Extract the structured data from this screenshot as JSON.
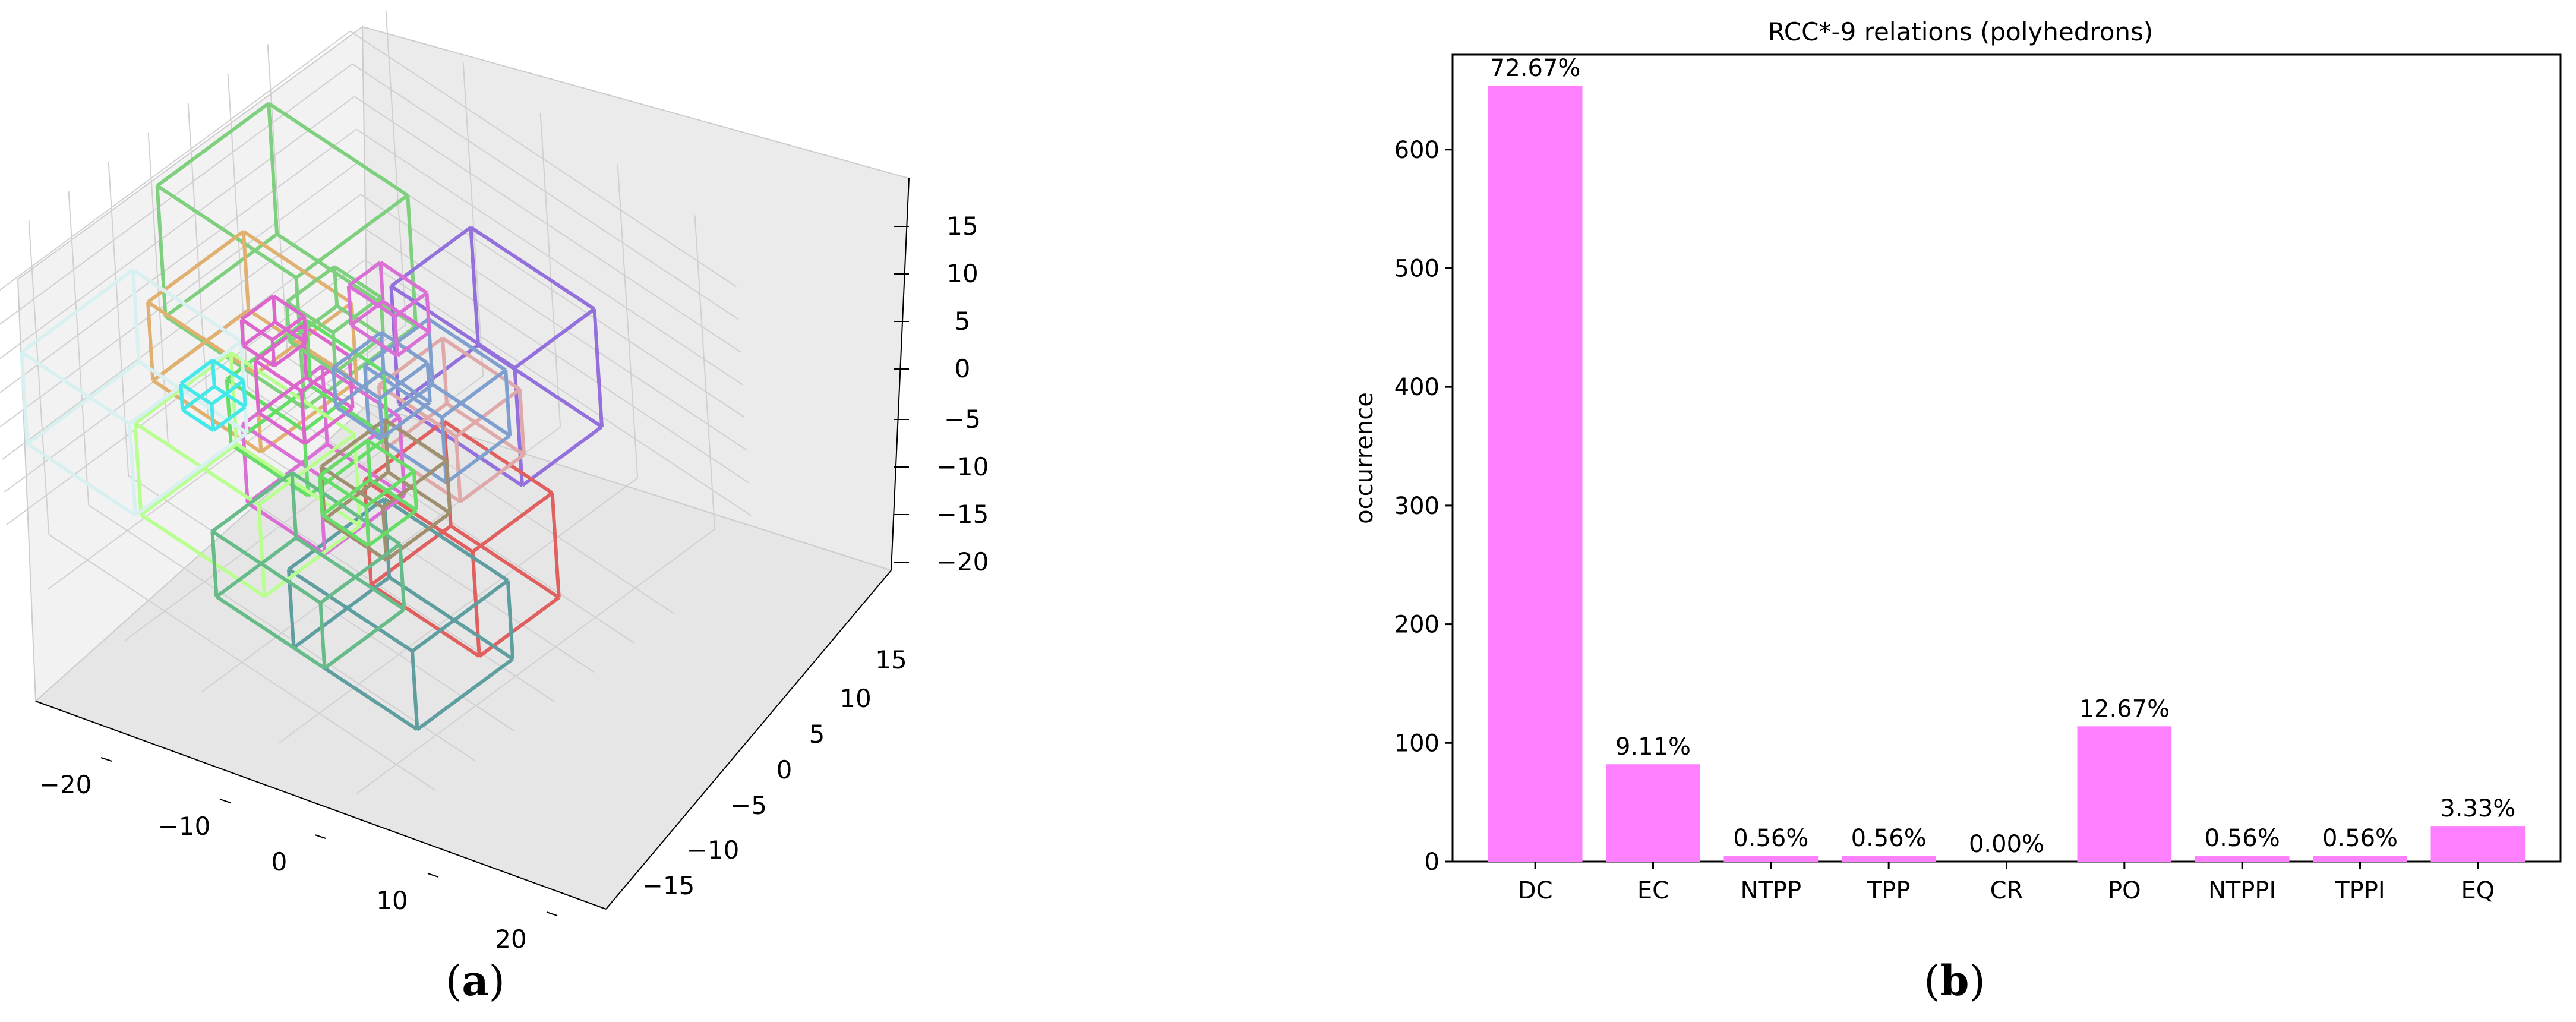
{
  "panels": {
    "a": {
      "caption_open": "(",
      "caption_letter": "a",
      "caption_close": ")"
    },
    "b": {
      "caption_open": "(",
      "caption_letter": "b",
      "caption_close": ")"
    }
  },
  "plot3d": {
    "x_ticks": [
      "−20",
      "−10",
      "0",
      "10",
      "20"
    ],
    "y_ticks": [
      "−15",
      "−10",
      "−5",
      "0",
      "5",
      "10",
      "15"
    ],
    "z_ticks": [
      "15",
      "10",
      "5",
      "0",
      "−5",
      "−10",
      "−15",
      "−20"
    ],
    "box_colors": [
      "#7ed07e",
      "#9370db",
      "#e06060",
      "#5f9ea0",
      "#e0a9a9",
      "#7f9fcf",
      "#e0b070",
      "#da70d6",
      "#66dd66",
      "#b8ff90",
      "#d8f0f0",
      "#44e8e8",
      "#a09070",
      "#dd66cc",
      "#66bb88"
    ]
  },
  "chart_data": {
    "type": "bar",
    "title": "RCC*-9 relations (polyhedrons)",
    "xlabel": "",
    "ylabel": "occurrence",
    "categories": [
      "DC",
      "EC",
      "NTPP",
      "TPP",
      "CR",
      "PO",
      "NTPPI",
      "TPPI",
      "EQ"
    ],
    "values": [
      654,
      82,
      5,
      5,
      0,
      114,
      5,
      5,
      30
    ],
    "labels": [
      "72.67%",
      "9.11%",
      "0.56%",
      "0.56%",
      "0.00%",
      "12.67%",
      "0.56%",
      "0.56%",
      "3.33%"
    ],
    "ylim": [
      0,
      680
    ],
    "yticks": [
      0,
      100,
      200,
      300,
      400,
      500,
      600
    ],
    "bar_color": "#ff80ff",
    "grid": false
  }
}
